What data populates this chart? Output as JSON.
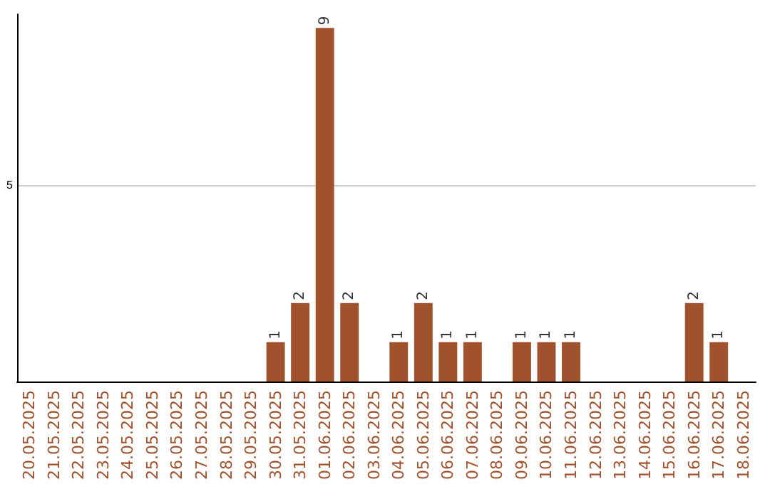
{
  "chart_data": {
    "type": "bar",
    "categories": [
      "20.05.2025",
      "21.05.2025",
      "22.05.2025",
      "23.05.2025",
      "24.05.2025",
      "25.05.2025",
      "26.05.2025",
      "27.05.2025",
      "28.05.2025",
      "29.05.2025",
      "30.05.2025",
      "31.05.2025",
      "01.06.2025",
      "02.06.2025",
      "03.06.2025",
      "04.06.2025",
      "05.06.2025",
      "06.06.2025",
      "07.06.2025",
      "08.06.2025",
      "09.06.2025",
      "10.06.2025",
      "11.06.2025",
      "12.06.2025",
      "13.06.2025",
      "14.06.2025",
      "15.06.2025",
      "16.06.2025",
      "17.06.2025",
      "18.06.2025"
    ],
    "values": [
      0,
      0,
      0,
      0,
      0,
      0,
      0,
      0,
      0,
      0,
      1,
      2,
      9,
      2,
      0,
      1,
      2,
      1,
      1,
      0,
      1,
      1,
      1,
      0,
      0,
      0,
      0,
      2,
      1,
      0
    ],
    "value_labels": [
      null,
      null,
      null,
      null,
      null,
      null,
      null,
      null,
      null,
      null,
      "1",
      "2",
      "9",
      "2",
      null,
      "1",
      "2",
      "1",
      "1",
      null,
      "1",
      "1",
      "1",
      null,
      null,
      null,
      null,
      "2",
      "1",
      null
    ],
    "color": "#a0522d",
    "ylim": [
      0,
      9.35
    ],
    "yticks": [
      {
        "value": 0,
        "label": null
      },
      5
    ],
    "grid": "y"
  }
}
